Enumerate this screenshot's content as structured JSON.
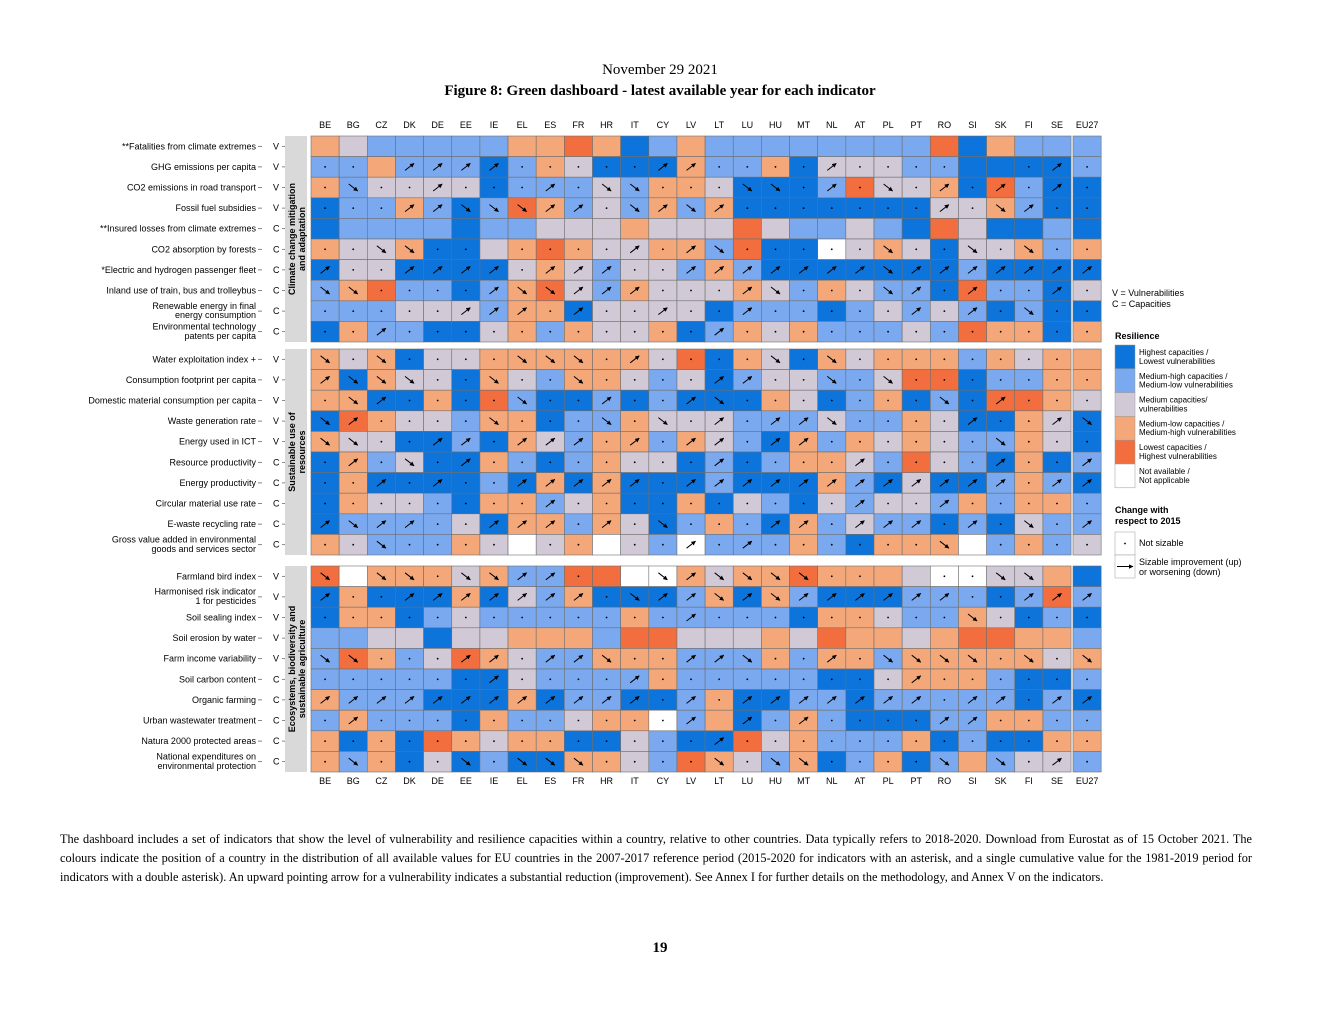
{
  "header": {
    "date": "November 29 2021",
    "figure_title": "Figure 8: Green dashboard - latest available year for each indicator"
  },
  "chart_data": {
    "type": "heatmap",
    "title": "Figure 8: Green dashboard - latest available year for each indicator",
    "countries": [
      "BE",
      "BG",
      "CZ",
      "DK",
      "DE",
      "EE",
      "IE",
      "EL",
      "ES",
      "FR",
      "HR",
      "IT",
      "CY",
      "LV",
      "LT",
      "LU",
      "HU",
      "MT",
      "NL",
      "AT",
      "PL",
      "PT",
      "RO",
      "SI",
      "SK",
      "FI",
      "SE"
    ],
    "aggregate": "EU27",
    "groups": [
      {
        "name": "Climate change mitigation and adaptation",
        "indicators": [
          {
            "label": "**Fatalities from climate extremes",
            "type": "V"
          },
          {
            "label": "GHG emissions per capita",
            "type": "V"
          },
          {
            "label": "CO2 emissions in road transport",
            "type": "V"
          },
          {
            "label": "Fossil fuel subsidies",
            "type": "V"
          },
          {
            "label": "**Insured losses from climate extremes",
            "type": "C"
          },
          {
            "label": "CO2 absorption by forests",
            "type": "C"
          },
          {
            "label": "*Electric and hydrogen passenger fleet",
            "type": "C"
          },
          {
            "label": "Inland use of train, bus and trolleybus",
            "type": "C"
          },
          {
            "label": "Renewable energy in final energy consumption",
            "type": "C"
          },
          {
            "label": "Environmental technology patents per capita",
            "type": "C"
          }
        ]
      },
      {
        "name": "Sustainable use of resources",
        "indicators": [
          {
            "label": "Water exploitation index +",
            "type": "V"
          },
          {
            "label": "Consumption footprint per capita",
            "type": "V"
          },
          {
            "label": "Domestic material consumption per capita",
            "type": "V"
          },
          {
            "label": "Waste generation rate",
            "type": "V"
          },
          {
            "label": "Energy used in ICT",
            "type": "V"
          },
          {
            "label": "Resource productivity",
            "type": "C"
          },
          {
            "label": "Energy productivity",
            "type": "C"
          },
          {
            "label": "Circular material use rate",
            "type": "C"
          },
          {
            "label": "E-waste recycling rate",
            "type": "C"
          },
          {
            "label": "Gross value added in environmental goods and services sector",
            "type": "C"
          }
        ]
      },
      {
        "name": "Ecosystems, biodiversity and sustainable agriculture",
        "indicators": [
          {
            "label": "Farmland bird index",
            "type": "V"
          },
          {
            "label": "Harmonised risk indicator 1 for pesticides",
            "type": "V"
          },
          {
            "label": "Soil sealing index",
            "type": "V"
          },
          {
            "label": "Soil erosion by water",
            "type": "V"
          },
          {
            "label": "Farm income variability",
            "type": "V"
          },
          {
            "label": "Soil carbon content",
            "type": "C"
          },
          {
            "label": "Organic farming",
            "type": "C"
          },
          {
            "label": "Urban wastewater treatment",
            "type": "C"
          },
          {
            "label": "Natura 2000 protected areas",
            "type": "C"
          },
          {
            "label": "National expenditures on environmental protection",
            "type": "C"
          }
        ]
      }
    ],
    "value_scale": {
      "1": "Highest capacities / Lowest vulnerabilities",
      "2": "Medium-high capacities / Medium-low vulnerabilities",
      "3": "Medium capacities/ vulnerabilities",
      "4": "Medium-low capacities / Medium-high vulnerabilities",
      "5": "Lowest capacities / Highest vulnerabilities",
      "0": "Not available / Not applicable"
    },
    "change_scale": {
      "0": "no change shown",
      "1": "Not sizable",
      "2": "Sizable improvement (up)",
      "3": "Sizable worsening (down)"
    },
    "cells": [
      "4322222445412422222222514222|0000000000000000000000000000",
      "2242221243111422413332211112|1102222111112211112111100121",
      "4233331222324431112533415211|1311211121331113312131212121",
      "1224212542324241111111334211|1112233322132321111111213211",
      "1222212233343335322321531121|0000000000000000000000000000",
      "4334113454334425110343133424|1133110111121231111131131311",
      "1331111343233242111111121111|2112222122211222222232222222",
      "2452212453243334324322152213|3311112332221112311132121121",
      "2223332441333312221232321211|1111122212112112111112121311",
      "1422113424334124342223254414|1121111111111121111111111111",
      "4341334444443514314344424344|3131111333121111313111111110",
      "4143314324432312332235512244|2333113113111122113131111111",
      "4411415211212111431241215543|1321111311211231111111312111",
      "1543324412243332223224311431|3211113111313121223111121123",
      "4331121432442432142434322431|3311221222121221221111113111",
      "1423114212433121244325321412|1213121111111121111211112112",
      "1411112141411121114213112421|1121211222221222222222222122",
      "1433214423411413213233242442|1111111121111111111211211111",
      "1222231442431242142322121322|2322112221213111221222121312",
      "4322243034032022242144402423|1131111011011212111111301111",
      "5044434225500434454443003341|3033133221003233331100113300",
      "1411141324111241421112221252|2112222222132232322222211222",
      "1441232222242222214432243121|1111111111111211111111131111",
      "2233133444255333435443455442|0000000000000000000000000000",
      "2542354322444222424424444434|3311122122311223112133331313",
      "2222211322224222221134442112|1111112111121111111112111111",
      "4222111412211241122122222121|2222222222221212222222122122",
      "2422214223440241242111224422|1211111111111202121111221111",
      "4141543441132115342224121144|1111111111111121111111111111",
      "4241312114432543241241242332|1311131333111131331111353121"
    ]
  },
  "legend": {
    "type_v": "V = Vulnerabilities",
    "type_c": "C = Capacities",
    "resilience_title": "Resilience",
    "change_title_line1": "Change with",
    "change_title_line2": "respect to 2015",
    "not_sizable": "Not sizable",
    "sizable_line1": "Sizable improvement (up)",
    "sizable_line2": "or worsening (down)"
  },
  "colors": {
    "1": "#0c74da",
    "2": "#7aa9ef",
    "3": "#d1c9d6",
    "4": "#f4a87a",
    "5": "#f26e3e",
    "0": "#ffffff",
    "group_strip": "#d9d9d9"
  },
  "caption": "The dashboard includes a set of indicators that show the level of vulnerability and resilience capacities within a country, relative to other countries. Data typically refers to 2018-2020. Download from Eurostat as of 15 October 2021. The colours indicate the position of a country in the distribution of all available values for EU countries in the 2007-2017 reference period (2015-2020 for indicators with an asterisk, and a single cumulative value for the 1981-2019 period for indicators with a double asterisk). An upward pointing arrow for a vulnerability indicates a substantial reduction (improvement). See Annex I for further details on the methodology, and Annex V on the indicators.",
  "page_number": "19"
}
